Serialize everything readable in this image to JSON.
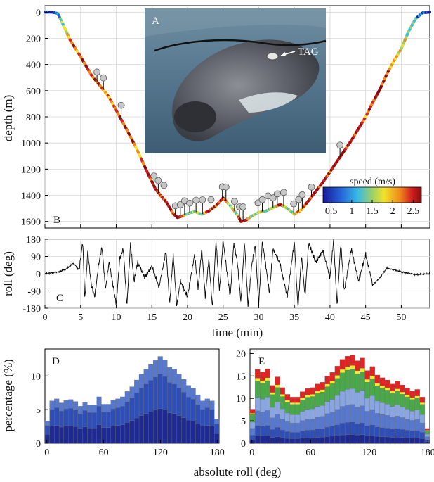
{
  "colors": {
    "speed_scale": [
      "#1a1a9c",
      "#2563d6",
      "#37b9e6",
      "#9bd06a",
      "#f1e22a",
      "#f08a1c",
      "#d42020",
      "#8a0d0d"
    ],
    "hist_layers": [
      "#1e2a8f",
      "#2f4fb5",
      "#5878cc",
      "#8aa6e0",
      "#4aa84a",
      "#f2ea2a",
      "#e02424"
    ],
    "marker": "#c8c8c8",
    "roll_line": "#000000"
  },
  "panels": {
    "photo": {
      "letter": "A",
      "tag_label": "TAG"
    },
    "depth": {
      "letter": "B",
      "ylabel": "depth (m)"
    },
    "roll": {
      "letter": "C",
      "ylabel": "roll (deg)",
      "xlabel": "time (min)"
    },
    "histD": {
      "letter": "D",
      "ylabel": "percentage (%)"
    },
    "histE": {
      "letter": "E"
    },
    "shared_xlabel": "absolute roll (deg)",
    "colorbar": {
      "title": "speed (m/s)",
      "ticks": [
        "0.5",
        "1",
        "1.5",
        "2",
        "2.5"
      ]
    }
  },
  "chart_data": [
    {
      "type": "line",
      "name": "depth profile",
      "x_unit": "min",
      "xlim": [
        0,
        54
      ],
      "ylim": [
        1650,
        -50
      ],
      "y_reversed": true,
      "yticks": [
        0,
        200,
        400,
        600,
        800,
        1000,
        1200,
        1400,
        1600
      ],
      "grid": true,
      "x": [
        0,
        1,
        1.8,
        2.5,
        3.5,
        5,
        6.5,
        8,
        9,
        10,
        11.5,
        13,
        14.5,
        15.5,
        16.2,
        17,
        18,
        18.6,
        19.2,
        20,
        21,
        22,
        23,
        24,
        25,
        26,
        27,
        27.5,
        28.2,
        29,
        30,
        31,
        32,
        33,
        34,
        35,
        36,
        37,
        38,
        39,
        40,
        41,
        42,
        43,
        44,
        45,
        46,
        47,
        48,
        49,
        50,
        51,
        52,
        53,
        54
      ],
      "y": [
        0,
        0,
        10,
        90,
        210,
        340,
        480,
        580,
        650,
        750,
        900,
        1060,
        1240,
        1350,
        1400,
        1450,
        1540,
        1570,
        1560,
        1540,
        1525,
        1545,
        1520,
        1480,
        1420,
        1480,
        1550,
        1600,
        1590,
        1560,
        1530,
        1520,
        1495,
        1470,
        1500,
        1545,
        1510,
        1440,
        1370,
        1300,
        1220,
        1140,
        1060,
        980,
        890,
        800,
        690,
        590,
        470,
        370,
        280,
        150,
        50,
        5,
        0
      ],
      "speed_m_s": [
        0.6,
        0.6,
        0.8,
        1.3,
        2.0,
        2.2,
        2.4,
        2.0,
        1.8,
        2.1,
        2.3,
        2.0,
        2.2,
        2.5,
        2.1,
        2.6,
        2.4,
        2.7,
        2.2,
        1.2,
        1.5,
        1.3,
        2.4,
        2.1,
        2.4,
        1.3,
        1.6,
        2.6,
        2.5,
        1.2,
        1.6,
        1.4,
        1.3,
        2.4,
        1.2,
        1.6,
        2.0,
        2.2,
        2.4,
        2.5,
        2.2,
        2.6,
        2.4,
        2.3,
        2.6,
        2.0,
        2.2,
        2.5,
        2.1,
        1.8,
        1.6,
        1.4,
        1.0,
        0.7,
        0.6
      ],
      "event_markers_x": [
        7.3,
        8.2,
        10.7,
        15.3,
        15.9,
        16.7,
        18.3,
        19.0,
        19.6,
        20.3,
        21.2,
        22.1,
        23.3,
        24.9,
        25.4,
        26.6,
        27.3,
        27.8,
        29.9,
        30.5,
        31.3,
        32.0,
        32.6,
        33.5,
        34.9,
        35.6,
        36.1,
        37.4,
        41.4
      ],
      "colorbar_range": [
        0.3,
        2.7
      ]
    },
    {
      "type": "line",
      "name": "roll",
      "xlabel": "time (min)",
      "ylabel": "roll (deg)",
      "xlim": [
        0,
        54
      ],
      "ylim": [
        -180,
        180
      ],
      "xticks": [
        0,
        5,
        10,
        15,
        20,
        25,
        30,
        35,
        40,
        45,
        50
      ],
      "yticks": [
        -180,
        -90,
        0,
        90,
        180
      ],
      "grid": true,
      "x": [
        0,
        2,
        3,
        4,
        4.8,
        5.3,
        5.6,
        6,
        6.5,
        7,
        7.5,
        8,
        8.5,
        9,
        10,
        10.5,
        11,
        11.5,
        12,
        12.5,
        13,
        14,
        15,
        16,
        17,
        17.5,
        18,
        18.5,
        19,
        20,
        21,
        21.5,
        22,
        22.5,
        23,
        23.5,
        24,
        24.5,
        25,
        25.5,
        26,
        26.5,
        27,
        27.5,
        28,
        28.5,
        29,
        29.5,
        30,
        30.5,
        31,
        31.5,
        32,
        33,
        34,
        35,
        35.5,
        36,
        36.5,
        37,
        38,
        39,
        40,
        40.5,
        41,
        41.5,
        42,
        43,
        44,
        45,
        46,
        47,
        48,
        50,
        52,
        54
      ],
      "y": [
        0,
        10,
        25,
        55,
        20,
        170,
        -140,
        120,
        -60,
        -120,
        40,
        140,
        -80,
        60,
        -160,
        80,
        130,
        -170,
        160,
        -40,
        60,
        -20,
        40,
        -70,
        120,
        -160,
        100,
        -170,
        -40,
        -120,
        100,
        -80,
        130,
        -120,
        80,
        -180,
        170,
        -90,
        175,
        20,
        -120,
        160,
        60,
        -150,
        170,
        -170,
        40,
        150,
        -160,
        170,
        40,
        -100,
        130,
        50,
        -120,
        170,
        -180,
        90,
        -120,
        160,
        60,
        120,
        -20,
        175,
        -170,
        160,
        -90,
        130,
        -40,
        100,
        -60,
        -20,
        30,
        10,
        -5,
        0
      ]
    },
    {
      "type": "bar",
      "stacked": true,
      "panel": "D",
      "xlabel": "absolute roll (deg)",
      "ylabel": "percentage (%)",
      "xlim": [
        -2,
        182
      ],
      "ylim": [
        0,
        14
      ],
      "xticks": [
        0,
        60,
        120,
        180
      ],
      "yticks": [
        0,
        5,
        10
      ],
      "bin_width_deg": 5,
      "totals": [
        3.3,
        6.3,
        6.6,
        6.0,
        6.4,
        6.5,
        6.2,
        5.5,
        6.1,
        5.7,
        5.7,
        6.9,
        5.8,
        5.8,
        6.4,
        6.6,
        6.9,
        7.7,
        8.4,
        9.4,
        10.3,
        11.0,
        11.7,
        12.3,
        12.9,
        12.4,
        11.3,
        11.0,
        10.3,
        9.5,
        8.6,
        8.2,
        7.2,
        6.3,
        6.6,
        6.3,
        3.6
      ],
      "layer_fractions": [
        0.4,
        0.4,
        0.2
      ]
    },
    {
      "type": "bar",
      "stacked": true,
      "panel": "E",
      "xlabel": "absolute roll (deg)",
      "xlim": [
        -2,
        182
      ],
      "ylim": [
        0,
        21
      ],
      "xticks": [
        0,
        60,
        120,
        180
      ],
      "yticks": [
        0,
        5,
        10,
        15,
        20
      ],
      "bin_width_deg": 5,
      "totals": [
        7.6,
        16.5,
        15.9,
        16.6,
        12.9,
        14.8,
        12.4,
        10.9,
        10.3,
        10.3,
        11.5,
        12.2,
        12.4,
        13.2,
        13.6,
        15.0,
        15.8,
        17.2,
        18.7,
        19.4,
        19.7,
        18.4,
        19.0,
        16.2,
        17.1,
        15.2,
        14.6,
        14.1,
        13.2,
        13.8,
        13.0,
        12.3,
        11.6,
        12.0,
        10.3,
        3.3
      ],
      "layer_fractions": [
        0.1,
        0.14,
        0.2,
        0.18,
        0.22,
        0.04,
        0.12
      ]
    }
  ]
}
